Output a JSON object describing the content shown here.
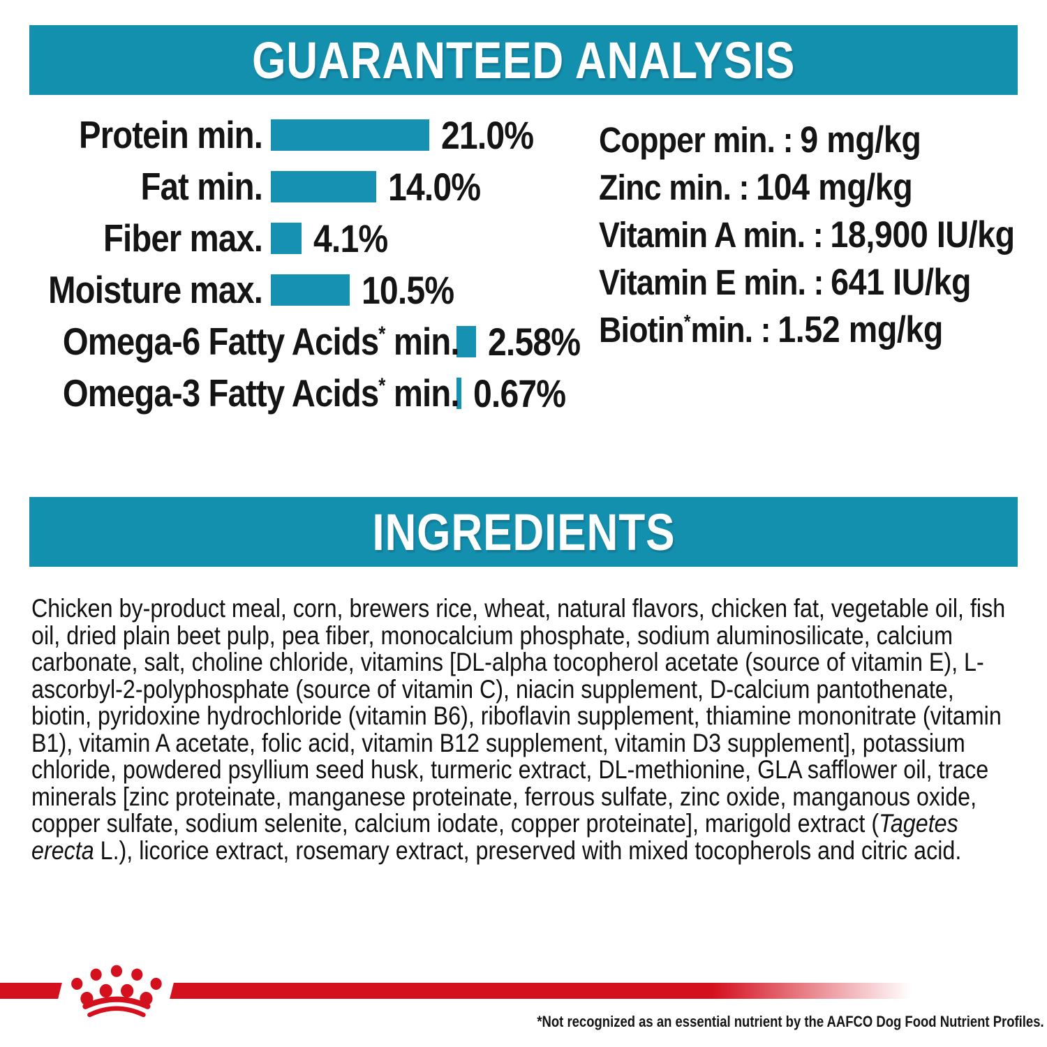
{
  "page": {
    "type": "pet-food-nutrition-label",
    "brand_logo": "royal-canin-crown"
  },
  "colors": {
    "teal_header": "#1490AF",
    "bar_teal": "#1791B2",
    "brand_red": "#D40F1E",
    "text": "#141414"
  },
  "sections": {
    "guaranteed_analysis": {
      "title": "GUARANTEED ANALYSIS",
      "nutrients": [
        {
          "label": "Copper min.",
          "sup": "",
          "label_post": "",
          "value": "9 mg/kg"
        },
        {
          "label": "Zinc min.",
          "sup": "",
          "label_post": "",
          "value": "104 mg/kg"
        },
        {
          "label": "Vitamin A min.",
          "sup": "",
          "label_post": "",
          "value": "18,900 IU/kg"
        },
        {
          "label": "Vitamin E min.",
          "sup": "",
          "label_post": "",
          "value": "641 IU/kg"
        },
        {
          "label": "Biotin",
          "sup": "*",
          "label_post": " min.",
          "value": "1.52 mg/kg"
        }
      ]
    },
    "ingredients": {
      "title": "INGREDIENTS",
      "text_before_italic": "Chicken by-product meal, corn, brewers rice, wheat, natural flavors, chicken fat, vegetable oil, fish oil, dried plain beet pulp, pea fiber, monocalcium phosphate, sodium aluminosilicate, calcium carbonate, salt, choline chloride, vitamins [DL-alpha tocopherol acetate (source of vitamin E), L-ascorbyl-2-polyphosphate (source of vitamin C), niacin supplement, D-calcium pantothenate, biotin, pyridoxine hydrochloride (vitamin B6), riboflavin supplement, thiamine mononitrate (vitamin B1), vitamin A acetate, folic acid, vitamin B12 supplement, vitamin D3 supplement], potassium chloride, powdered psyllium seed husk, turmeric extract, DL-methionine, GLA safflower oil, trace minerals [zinc proteinate, manganese proteinate, ferrous sulfate, zinc oxide, manganous oxide, copper sulfate, sodium selenite, calcium iodate, copper proteinate], marigold extract (",
      "italic_species": "Tagetes erecta",
      "text_after_italic": " L.), licorice extract, rosemary extract, preserved with mixed tocopherols and citric acid."
    },
    "footer": {
      "footnote": "*Not recognized as an essential nutrient by the AAFCO Dog Food Nutrient Profiles."
    }
  },
  "chart_data": {
    "type": "bar",
    "orientation": "horizontal",
    "title": "GUARANTEED ANALYSIS",
    "unit": "%",
    "bar_color": "#1791B2",
    "value_range": [
      0,
      21
    ],
    "categories": [
      "Protein min.",
      "Fat min.",
      "Fiber max.",
      "Moisture max.",
      "Omega-6 Fatty Acids* min.",
      "Omega-3 Fatty Acids* min."
    ],
    "values": [
      21.0,
      14.0,
      4.1,
      10.5,
      2.58,
      0.67
    ],
    "rows": [
      {
        "label_pre": "Protein min.",
        "sup": "",
        "label_post": "",
        "value": 21.0,
        "display": "21.0%",
        "wide": false
      },
      {
        "label_pre": "Fat min.",
        "sup": "",
        "label_post": "",
        "value": 14.0,
        "display": "14.0%",
        "wide": false
      },
      {
        "label_pre": "Fiber max.",
        "sup": "",
        "label_post": "",
        "value": 4.1,
        "display": "4.1%",
        "wide": false
      },
      {
        "label_pre": "Moisture max.",
        "sup": "",
        "label_post": "",
        "value": 10.5,
        "display": "10.5%",
        "wide": false
      },
      {
        "label_pre": "Omega-6 Fatty Acids",
        "sup": "*",
        "label_post": " min.",
        "value": 2.58,
        "display": "2.58%",
        "wide": true
      },
      {
        "label_pre": "Omega-3 Fatty Acids",
        "sup": "*",
        "label_post": " min.",
        "value": 0.67,
        "display": "0.67%",
        "wide": true
      }
    ]
  }
}
